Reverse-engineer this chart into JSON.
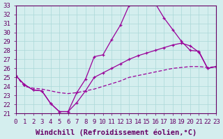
{
  "xlabel": "Windchill (Refroidissement éolien,°C)",
  "bg_color": "#d4eeee",
  "line_color": "#990099",
  "xmin": 0,
  "xmax": 23,
  "ymin": 21,
  "ymax": 33,
  "line1_x": [
    0,
    1,
    2,
    3,
    4,
    5,
    6,
    7,
    8,
    9,
    10,
    11,
    12,
    13,
    14,
    15,
    16,
    17,
    18,
    19,
    20,
    21,
    22,
    23
  ],
  "line1_y": [
    25.2,
    24.2,
    23.6,
    23.5,
    22.1,
    21.2,
    21.2,
    23.3,
    24.8,
    27.3,
    27.5,
    29.2,
    30.8,
    33.0,
    33.3,
    33.3,
    33.2,
    31.6,
    30.3,
    29.0,
    28.0,
    27.9,
    26.0,
    26.2
  ],
  "line2_x": [
    0,
    1,
    2,
    3,
    4,
    5,
    6,
    7,
    8,
    9,
    10,
    11,
    12,
    13,
    14,
    15,
    16,
    17,
    18,
    19,
    20,
    21,
    22,
    23
  ],
  "line2_y": [
    25.2,
    24.2,
    23.6,
    23.5,
    22.1,
    21.2,
    21.2,
    22.2,
    23.5,
    25.0,
    25.5,
    26.0,
    26.5,
    27.0,
    27.4,
    27.7,
    28.0,
    28.3,
    28.6,
    28.8,
    28.5,
    27.8,
    26.0,
    26.2
  ],
  "line3_x": [
    0,
    1,
    2,
    3,
    4,
    5,
    6,
    7,
    8,
    9,
    10,
    11,
    12,
    13,
    14,
    15,
    16,
    17,
    18,
    19,
    20,
    21,
    22,
    23
  ],
  "line3_y": [
    25.2,
    24.0,
    23.8,
    23.7,
    23.5,
    23.3,
    23.2,
    23.3,
    23.5,
    23.7,
    24.0,
    24.3,
    24.6,
    25.0,
    25.2,
    25.4,
    25.6,
    25.8,
    26.0,
    26.1,
    26.2,
    26.2,
    26.1,
    26.2
  ],
  "font_color": "#660066",
  "tick_label_size": 6.5,
  "axis_label_size": 7.5,
  "grid_color": "#aad8d8"
}
